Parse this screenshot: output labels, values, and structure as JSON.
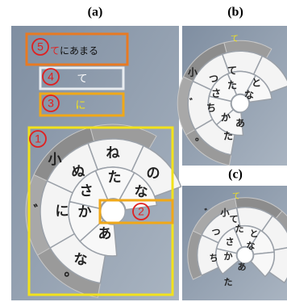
{
  "labels": [
    "(a)",
    "(b)",
    "(c)"
  ],
  "panel_a": {
    "callouts": [
      5,
      4,
      3,
      1,
      2
    ],
    "word": {
      "highlight": "て",
      "rest": "にあまる"
    },
    "input_char": "て",
    "candidate_char": "に",
    "keys": [
      "小",
      "ね",
      "ぬ",
      "の",
      "た",
      "さ",
      "な",
      "に",
      "か",
      "あ",
      "な",
      "゛",
      "。"
    ]
  },
  "panel_b": {
    "input_char": "て",
    "keys": [
      "小",
      "つ",
      "て",
      "と",
      "た",
      "な",
      "さ",
      "゛",
      "ち",
      "か",
      "あ",
      "た",
      "。"
    ]
  },
  "panel_c": {
    "input_char": "て",
    "keys": [
      "゛",
      "小",
      "つ",
      "て",
      "と",
      "さ",
      "た",
      "な",
      "ち",
      "か",
      "あ",
      "た"
    ]
  }
}
